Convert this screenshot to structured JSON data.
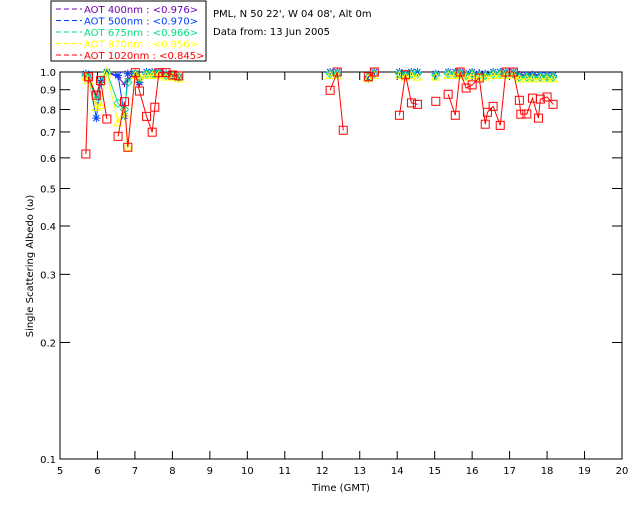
{
  "header": {
    "location": "PML, N 50 22', W 04 08', Alt 0m",
    "date": "Data from: 13 Jun 2005"
  },
  "chart_data": {
    "type": "scatter",
    "title": "",
    "xlabel": "Time (GMT)",
    "ylabel": "Single Scattering Albedo (ω)",
    "xlim": [
      5,
      20
    ],
    "ylim": [
      0.1,
      1.0
    ],
    "yscale": "log",
    "xticks": [
      "5",
      "6",
      "7",
      "8",
      "9",
      "10",
      "11",
      "12",
      "13",
      "14",
      "15",
      "16",
      "17",
      "18",
      "19",
      "20"
    ],
    "yticks": [
      "0.1",
      "0.2",
      "0.3",
      "0.4",
      "0.5",
      "0.6",
      "0.7",
      "0.8",
      "0.9",
      "1.0"
    ],
    "legend_position": "top-left-outside",
    "series": [
      {
        "name": "AOT  400nm : <0.976>",
        "color": "#7000b0",
        "marker": "plus",
        "segments": [
          [
            [
              5.69,
              0.99
            ],
            [
              5.76,
              0.97
            ],
            [
              5.97,
              0.86
            ],
            [
              6.08,
              0.95
            ],
            [
              6.25,
              1.0
            ],
            [
              6.55,
              0.97
            ],
            [
              6.72,
              0.93
            ],
            [
              6.81,
              0.96
            ],
            [
              7.01,
              0.99
            ],
            [
              7.12,
              0.93
            ],
            [
              7.31,
              1.0
            ],
            [
              7.46,
              1.0
            ],
            [
              7.53,
              0.99
            ],
            [
              7.64,
              1.0
            ],
            [
              7.83,
              0.99
            ],
            [
              8.01,
              0.98
            ],
            [
              8.17,
              0.97
            ]
          ],
          [
            [
              12.21,
              1.0
            ],
            [
              12.4,
              1.0
            ]
          ],
          [
            [
              13.23,
              0.97
            ],
            [
              13.39,
              1.0
            ]
          ],
          [
            [
              14.06,
              1.0
            ],
            [
              14.22,
              0.99
            ],
            [
              14.38,
              1.0
            ],
            [
              14.54,
              1.0
            ]
          ],
          [
            [
              15.03,
              0.99
            ]
          ],
          [
            [
              15.36,
              1.0
            ],
            [
              15.55,
              1.0
            ],
            [
              15.68,
              1.0
            ],
            [
              15.84,
              0.99
            ],
            [
              16.0,
              1.0
            ],
            [
              16.19,
              1.0
            ],
            [
              16.35,
              0.99
            ],
            [
              16.56,
              1.0
            ],
            [
              16.75,
              1.0
            ],
            [
              16.9,
              1.0
            ],
            [
              17.1,
              1.0
            ],
            [
              17.26,
              0.99
            ],
            [
              17.46,
              0.98
            ],
            [
              17.61,
              0.99
            ],
            [
              17.82,
              0.98
            ],
            [
              18.0,
              0.98
            ],
            [
              18.16,
              0.98
            ]
          ]
        ]
      },
      {
        "name": "AOT  500nm : <0.970>",
        "color": "#0040ff",
        "marker": "asterisk",
        "segments": [
          [
            [
              5.69,
              0.99
            ],
            [
              5.76,
              0.97
            ],
            [
              5.97,
              0.76
            ],
            [
              6.08,
              0.94
            ],
            [
              6.25,
              1.0
            ],
            [
              6.55,
              0.98
            ],
            [
              6.72,
              0.77
            ],
            [
              6.81,
              0.99
            ],
            [
              7.01,
              0.99
            ],
            [
              7.12,
              0.94
            ],
            [
              7.31,
              1.0
            ],
            [
              7.46,
              1.0
            ],
            [
              7.53,
              0.99
            ],
            [
              7.64,
              1.0
            ],
            [
              7.83,
              0.99
            ],
            [
              8.01,
              0.98
            ],
            [
              8.17,
              0.97
            ]
          ],
          [
            [
              12.21,
              1.0
            ],
            [
              12.4,
              1.0
            ]
          ],
          [
            [
              13.23,
              0.96
            ],
            [
              13.39,
              1.0
            ]
          ],
          [
            [
              14.06,
              1.0
            ],
            [
              14.22,
              0.99
            ],
            [
              14.38,
              1.0
            ],
            [
              14.54,
              1.0
            ]
          ],
          [
            [
              15.03,
              0.99
            ]
          ],
          [
            [
              15.36,
              1.0
            ],
            [
              15.55,
              1.0
            ],
            [
              15.68,
              1.0
            ],
            [
              15.84,
              0.99
            ],
            [
              16.0,
              1.0
            ],
            [
              16.19,
              0.99
            ],
            [
              16.35,
              0.99
            ],
            [
              16.56,
              1.0
            ],
            [
              16.75,
              1.0
            ],
            [
              16.9,
              1.0
            ],
            [
              17.1,
              1.0
            ],
            [
              17.26,
              0.98
            ],
            [
              17.46,
              0.98
            ],
            [
              17.61,
              0.98
            ],
            [
              17.82,
              0.98
            ],
            [
              18.0,
              0.98
            ],
            [
              18.16,
              0.98
            ]
          ]
        ]
      },
      {
        "name": "AOT  675nm : <0.966>",
        "color": "#00e080",
        "marker": "diamond",
        "segments": [
          [
            [
              5.69,
              0.98
            ],
            [
              5.76,
              0.96
            ],
            [
              5.97,
              0.85
            ],
            [
              6.08,
              0.95
            ],
            [
              6.25,
              1.0
            ],
            [
              6.55,
              0.83
            ],
            [
              6.72,
              0.8
            ],
            [
              6.81,
              0.94
            ],
            [
              7.01,
              0.99
            ],
            [
              7.12,
              0.96
            ],
            [
              7.31,
              0.99
            ],
            [
              7.46,
              0.99
            ],
            [
              7.53,
              0.99
            ],
            [
              7.64,
              0.99
            ],
            [
              7.83,
              0.98
            ],
            [
              8.01,
              0.98
            ],
            [
              8.17,
              0.97
            ]
          ],
          [
            [
              12.21,
              0.99
            ],
            [
              12.4,
              0.99
            ]
          ],
          [
            [
              13.23,
              0.97
            ],
            [
              13.39,
              0.99
            ]
          ],
          [
            [
              14.06,
              0.99
            ],
            [
              14.22,
              0.98
            ],
            [
              14.38,
              0.99
            ],
            [
              14.54,
              0.99
            ]
          ],
          [
            [
              15.03,
              0.98
            ]
          ],
          [
            [
              15.36,
              0.99
            ],
            [
              15.55,
              0.99
            ],
            [
              15.68,
              0.99
            ],
            [
              15.84,
              0.98
            ],
            [
              16.0,
              0.99
            ],
            [
              16.19,
              0.98
            ],
            [
              16.35,
              0.98
            ],
            [
              16.56,
              0.99
            ],
            [
              16.75,
              0.99
            ],
            [
              16.9,
              0.99
            ],
            [
              17.1,
              0.99
            ],
            [
              17.26,
              0.97
            ],
            [
              17.46,
              0.97
            ],
            [
              17.61,
              0.97
            ],
            [
              17.82,
              0.97
            ],
            [
              18.0,
              0.97
            ],
            [
              18.16,
              0.97
            ]
          ]
        ]
      },
      {
        "name": "AOT  870nm : <0.956>",
        "color": "#ffff00",
        "marker": "triangle",
        "segments": [
          [
            [
              5.69,
              0.97
            ],
            [
              5.76,
              0.95
            ],
            [
              5.97,
              0.81
            ],
            [
              6.08,
              0.82
            ],
            [
              6.25,
              1.0
            ],
            [
              6.55,
              0.74
            ],
            [
              6.72,
              0.78
            ],
            [
              6.81,
              0.64
            ],
            [
              7.01,
              0.98
            ],
            [
              7.12,
              0.97
            ],
            [
              7.31,
              0.98
            ],
            [
              7.46,
              0.98
            ],
            [
              7.53,
              0.98
            ],
            [
              7.64,
              0.98
            ],
            [
              7.83,
              0.97
            ],
            [
              8.01,
              0.97
            ],
            [
              8.17,
              0.96
            ]
          ],
          [
            [
              12.21,
              0.98
            ],
            [
              12.4,
              0.98
            ]
          ],
          [
            [
              13.23,
              0.96
            ],
            [
              13.39,
              0.98
            ]
          ],
          [
            [
              14.06,
              0.98
            ],
            [
              14.22,
              0.97
            ],
            [
              14.38,
              0.98
            ],
            [
              14.54,
              0.97
            ]
          ],
          [
            [
              15.03,
              0.97
            ]
          ],
          [
            [
              15.36,
              0.98
            ],
            [
              15.55,
              0.98
            ],
            [
              15.68,
              0.98
            ],
            [
              15.84,
              0.97
            ],
            [
              16.0,
              0.98
            ],
            [
              16.19,
              0.97
            ],
            [
              16.35,
              0.97
            ],
            [
              16.56,
              0.98
            ],
            [
              16.75,
              0.98
            ],
            [
              16.9,
              0.98
            ],
            [
              17.1,
              0.98
            ],
            [
              17.26,
              0.96
            ],
            [
              17.46,
              0.96
            ],
            [
              17.61,
              0.96
            ],
            [
              17.82,
              0.96
            ],
            [
              18.0,
              0.96
            ],
            [
              18.16,
              0.96
            ]
          ]
        ]
      },
      {
        "name": "AOT 1020nm : <0.845>",
        "color": "#ff0000",
        "marker": "square",
        "segments": [
          [
            [
              5.69,
              0.614
            ],
            [
              5.76,
              0.972
            ],
            [
              5.97,
              0.871
            ],
            [
              6.08,
              0.95
            ],
            [
              6.25,
              0.756
            ]
          ],
          [
            [
              6.55,
              0.682
            ],
            [
              6.72,
              0.838
            ],
            [
              6.81,
              0.639
            ],
            [
              7.01,
              0.996
            ],
            [
              7.12,
              0.893
            ],
            [
              7.31,
              0.768
            ],
            [
              7.46,
              0.699
            ],
            [
              7.53,
              0.811
            ],
            [
              7.64,
              0.996
            ],
            [
              7.83,
              0.996
            ],
            [
              8.01,
              0.982
            ],
            [
              8.17,
              0.977
            ]
          ],
          [
            [
              12.21,
              0.897
            ],
            [
              12.4,
              1.0
            ],
            [
              12.56,
              0.707
            ]
          ],
          [
            [
              13.23,
              0.972
            ],
            [
              13.39,
              1.0
            ]
          ],
          [
            [
              14.06,
              0.773
            ],
            [
              14.22,
              0.984
            ],
            [
              14.38,
              0.832
            ],
            [
              14.54,
              0.825
            ]
          ],
          [
            [
              15.03,
              0.84
            ]
          ],
          [
            [
              15.36,
              0.876
            ],
            [
              15.55,
              0.773
            ],
            [
              15.68,
              1.0
            ],
            [
              15.84,
              0.909
            ],
            [
              16.0,
              0.926
            ],
            [
              16.19,
              0.965
            ],
            [
              16.35,
              0.733
            ],
            [
              16.41,
              0.787
            ],
            [
              16.56,
              0.815
            ],
            [
              16.75,
              0.728
            ],
            [
              16.9,
              1.0
            ],
            [
              17.1,
              1.0
            ],
            [
              17.26,
              0.845
            ],
            [
              17.3,
              0.778
            ],
            [
              17.46,
              0.779
            ],
            [
              17.61,
              0.856
            ],
            [
              17.77,
              0.76
            ],
            [
              17.82,
              0.851
            ],
            [
              18.0,
              0.862
            ],
            [
              18.16,
              0.825
            ]
          ]
        ]
      }
    ]
  }
}
